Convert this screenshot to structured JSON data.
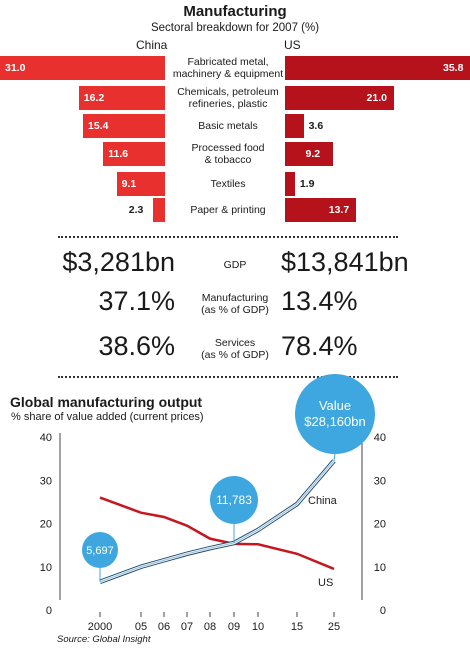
{
  "chart_data": [
    {
      "type": "bar",
      "title": "Manufacturing",
      "subtitle": "Sectoral breakdown for 2007 (%)",
      "left_label": "China",
      "right_label": "US",
      "categories": [
        "Fabricated metal, machinery & equipment",
        "Chemicals, petroleum refineries, plastic",
        "Basic metals",
        "Processed food & tobacco",
        "Textiles",
        "Paper & printing"
      ],
      "category_lines": [
        [
          "Fabricated metal,",
          "machinery & equipment"
        ],
        [
          "Chemicals, petroleum",
          "refineries, plastic"
        ],
        [
          "Basic metals"
        ],
        [
          "Processed food",
          "& tobacco"
        ],
        [
          "Textiles"
        ],
        [
          "Paper & printing"
        ]
      ],
      "series": [
        {
          "name": "China",
          "values": [
            31.0,
            16.2,
            15.4,
            11.6,
            9.1,
            2.3
          ],
          "labels": [
            "31.0",
            "16.2",
            "15.4",
            "11.6",
            "9.1",
            "2.3"
          ],
          "color": "#e8312f"
        },
        {
          "name": "US",
          "values": [
            35.8,
            21.0,
            3.6,
            9.2,
            1.9,
            13.7
          ],
          "labels": [
            "35.8",
            "21.0",
            "3.6",
            "9.2",
            "1.9",
            "13.7"
          ],
          "color": "#b5121b"
        }
      ]
    },
    {
      "type": "table",
      "rows": [
        {
          "label": [
            "GDP"
          ],
          "china": "$3,281bn",
          "us": "$13,841bn"
        },
        {
          "label": [
            "Manufacturing",
            "(as % of GDP)"
          ],
          "china": "37.1%",
          "us": "13.4%"
        },
        {
          "label": [
            "Services",
            "(as % of GDP)"
          ],
          "china": "38.6%",
          "us": "78.4%"
        }
      ]
    },
    {
      "type": "line",
      "title": "Global manufacturing output",
      "subtitle": "% share of value added (current prices)",
      "x": [
        "2000",
        "05",
        "06",
        "07",
        "08",
        "09",
        "10",
        "15",
        "25"
      ],
      "series": [
        {
          "name": "China",
          "values": [
            6.5,
            10,
            11.5,
            13,
            14.3,
            15.5,
            18.5,
            24.5,
            34.5
          ],
          "color": "#9ec5de"
        },
        {
          "name": "US",
          "values": [
            26,
            22.5,
            21.5,
            19.5,
            16.5,
            15.3,
            15.2,
            13,
            9.5
          ],
          "color": "#c6171e"
        }
      ],
      "ylim": [
        0,
        40
      ],
      "yticks": [
        "0",
        "10",
        "20",
        "30",
        "40"
      ],
      "grid": false,
      "annotations": [
        {
          "x": "2000",
          "lines": [
            "5,697"
          ]
        },
        {
          "x": "09",
          "lines": [
            "11,783"
          ]
        },
        {
          "x": "25",
          "lines": [
            "Value",
            "$28,160bn"
          ]
        }
      ],
      "source": "Source: Global Insight",
      "bubble_color": "#3fa7df"
    }
  ]
}
